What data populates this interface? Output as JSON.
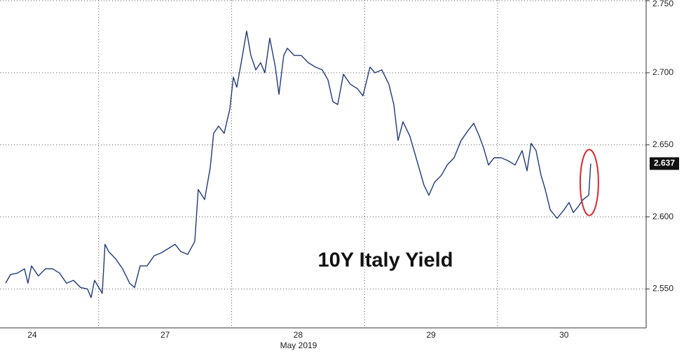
{
  "chart_data": {
    "type": "line",
    "annotation": "10Y Italy Yield",
    "xlabel": "May 2019",
    "x": [
      0.3,
      0.337,
      0.389,
      0.442,
      0.468,
      0.495,
      0.547,
      0.6,
      0.653,
      0.706,
      0.758,
      0.811,
      0.864,
      0.916,
      0.943,
      0.969,
      1.001,
      1.027,
      1.048,
      1.075,
      1.127,
      1.18,
      1.233,
      1.27,
      1.312,
      1.364,
      1.417,
      1.47,
      1.523,
      1.575,
      1.617,
      1.67,
      1.723,
      1.749,
      1.797,
      1.839,
      1.865,
      1.902,
      1.944,
      1.987,
      2.013,
      2.039,
      2.076,
      2.113,
      2.145,
      2.182,
      2.218,
      2.25,
      2.287,
      2.329,
      2.356,
      2.392,
      2.419,
      2.472,
      2.524,
      2.577,
      2.63,
      2.682,
      2.725,
      2.761,
      2.798,
      2.841,
      2.893,
      2.946,
      2.988,
      3.041,
      3.078,
      3.13,
      3.183,
      3.22,
      3.252,
      3.289,
      3.341,
      3.394,
      3.447,
      3.484,
      3.526,
      3.579,
      3.621,
      3.673,
      3.726,
      3.779,
      3.821,
      3.863,
      3.895,
      3.932,
      3.974,
      4.027,
      4.079,
      4.132,
      4.185,
      4.222,
      4.253,
      4.29,
      4.327,
      4.359,
      4.396,
      4.448,
      4.501,
      4.538,
      4.57,
      4.606,
      4.643,
      4.686,
      4.701
    ],
    "values": [
      2.554,
      2.56,
      2.561,
      2.564,
      2.554,
      2.566,
      2.559,
      2.564,
      2.564,
      2.561,
      2.554,
      2.556,
      2.551,
      2.55,
      2.544,
      2.556,
      2.551,
      2.547,
      2.581,
      2.576,
      2.571,
      2.564,
      2.554,
      2.551,
      2.566,
      2.566,
      2.573,
      2.575,
      2.578,
      2.581,
      2.576,
      2.574,
      2.583,
      2.619,
      2.612,
      2.634,
      2.658,
      2.663,
      2.658,
      2.675,
      2.697,
      2.69,
      2.709,
      2.729,
      2.712,
      2.702,
      2.707,
      2.7,
      2.724,
      2.704,
      2.685,
      2.712,
      2.717,
      2.712,
      2.712,
      2.707,
      2.704,
      2.702,
      2.695,
      2.68,
      2.678,
      2.699,
      2.692,
      2.689,
      2.684,
      2.704,
      2.7,
      2.702,
      2.692,
      2.678,
      2.653,
      2.666,
      2.656,
      2.639,
      2.622,
      2.615,
      2.624,
      2.629,
      2.636,
      2.641,
      2.653,
      2.66,
      2.665,
      2.656,
      2.648,
      2.636,
      2.641,
      2.641,
      2.639,
      2.636,
      2.646,
      2.632,
      2.651,
      2.646,
      2.629,
      2.619,
      2.605,
      2.599,
      2.605,
      2.61,
      2.603,
      2.607,
      2.612,
      2.615,
      2.637
    ],
    "color": "#1f3a7a",
    "xlim": [
      0.258,
      5.118
    ],
    "xticks": [
      {
        "value": 0.5,
        "label": "24"
      },
      {
        "value": 1.5,
        "label": "27"
      },
      {
        "value": 2.5,
        "label": "28"
      },
      {
        "value": 3.5,
        "label": "29"
      },
      {
        "value": 4.5,
        "label": "30"
      }
    ],
    "ylim": [
      2.523,
      2.7505
    ],
    "yticks": [
      {
        "value": 2.55,
        "label": "2.550"
      },
      {
        "value": 2.6,
        "label": "2.600"
      },
      {
        "value": 2.65,
        "label": "2.650"
      },
      {
        "value": 2.7,
        "label": "2.700"
      },
      {
        "value": 2.75,
        "label": "2.750"
      }
    ],
    "grid": true,
    "highlight_color": "#d9292f"
  }
}
